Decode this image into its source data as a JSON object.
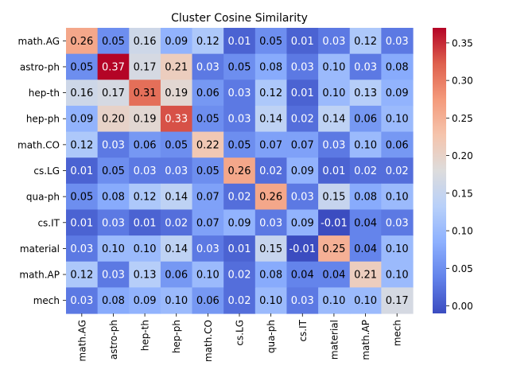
{
  "chart_data": {
    "type": "heatmap",
    "title": "Cluster Cosine Similarity",
    "xlabel": "",
    "ylabel": "",
    "rows": [
      "math.AG",
      "astro-ph",
      "hep-th",
      "hep-ph",
      "math.CO",
      "cs.LG",
      "qua-ph",
      "cs.IT",
      "material",
      "math.AP",
      "mech"
    ],
    "columns": [
      "math.AG",
      "astro-ph",
      "hep-th",
      "hep-ph",
      "math.CO",
      "cs.LG",
      "qua-ph",
      "cs.IT",
      "material",
      "math.AP",
      "mech"
    ],
    "values": [
      [
        0.26,
        0.05,
        0.16,
        0.09,
        0.12,
        0.01,
        0.05,
        0.01,
        0.03,
        0.12,
        0.03
      ],
      [
        0.05,
        0.37,
        0.17,
        0.21,
        0.03,
        0.05,
        0.08,
        0.03,
        0.1,
        0.03,
        0.08
      ],
      [
        0.16,
        0.17,
        0.31,
        0.19,
        0.06,
        0.03,
        0.12,
        0.01,
        0.1,
        0.13,
        0.09
      ],
      [
        0.09,
        0.2,
        0.19,
        0.33,
        0.05,
        0.03,
        0.14,
        0.02,
        0.14,
        0.06,
        0.1
      ],
      [
        0.12,
        0.03,
        0.06,
        0.05,
        0.22,
        0.05,
        0.07,
        0.07,
        0.03,
        0.1,
        0.06
      ],
      [
        0.01,
        0.05,
        0.03,
        0.03,
        0.05,
        0.26,
        0.02,
        0.09,
        0.01,
        0.02,
        0.02
      ],
      [
        0.05,
        0.08,
        0.12,
        0.14,
        0.07,
        0.02,
        0.26,
        0.03,
        0.15,
        0.08,
        0.1
      ],
      [
        0.01,
        0.03,
        0.01,
        0.02,
        0.07,
        0.09,
        0.03,
        0.09,
        -0.01,
        0.04,
        0.03
      ],
      [
        0.03,
        0.1,
        0.1,
        0.14,
        0.03,
        0.01,
        0.15,
        -0.01,
        0.25,
        0.04,
        0.1
      ],
      [
        0.12,
        0.03,
        0.13,
        0.06,
        0.1,
        0.02,
        0.08,
        0.04,
        0.04,
        0.21,
        0.1
      ],
      [
        0.03,
        0.08,
        0.09,
        0.1,
        0.06,
        0.02,
        0.1,
        0.03,
        0.1,
        0.1,
        0.17
      ]
    ],
    "value_labels": [
      [
        "0.26",
        "0.05",
        "0.16",
        "0.09",
        "0.12",
        "0.01",
        "0.05",
        "0.01",
        "0.03",
        "0.12",
        "0.03"
      ],
      [
        "0.05",
        "0.37",
        "0.17",
        "0.21",
        "0.03",
        "0.05",
        "0.08",
        "0.03",
        "0.10",
        "0.03",
        "0.08"
      ],
      [
        "0.16",
        "0.17",
        "0.31",
        "0.19",
        "0.06",
        "0.03",
        "0.12",
        "0.01",
        "0.10",
        "0.13",
        "0.09"
      ],
      [
        "0.09",
        "0.20",
        "0.19",
        "0.33",
        "0.05",
        "0.03",
        "0.14",
        "0.02",
        "0.14",
        "0.06",
        "0.10"
      ],
      [
        "0.12",
        "0.03",
        "0.06",
        "0.05",
        "0.22",
        "0.05",
        "0.07",
        "0.07",
        "0.03",
        "0.10",
        "0.06"
      ],
      [
        "0.01",
        "0.05",
        "0.03",
        "0.03",
        "0.05",
        "0.26",
        "0.02",
        "0.09",
        "0.01",
        "0.02",
        "0.02"
      ],
      [
        "0.05",
        "0.08",
        "0.12",
        "0.14",
        "0.07",
        "0.02",
        "0.26",
        "0.03",
        "0.15",
        "0.08",
        "0.10"
      ],
      [
        "0.01",
        "0.03",
        "0.01",
        "0.02",
        "0.07",
        "0.09",
        "0.03",
        "0.09",
        "-0.01",
        "0.04",
        "0.03"
      ],
      [
        "0.03",
        "0.10",
        "0.10",
        "0.14",
        "0.03",
        "0.01",
        "0.15",
        "-0.01",
        "0.25",
        "0.04",
        "0.10"
      ],
      [
        "0.12",
        "0.03",
        "0.13",
        "0.06",
        "0.10",
        "0.02",
        "0.08",
        "0.04",
        "0.04",
        "0.21",
        "0.10"
      ],
      [
        "0.03",
        "0.08",
        "0.09",
        "0.10",
        "0.06",
        "0.02",
        "0.10",
        "0.03",
        "0.10",
        "0.10",
        "0.17"
      ]
    ],
    "colorbar": {
      "range": [
        -0.01,
        0.37
      ],
      "ticks": [
        0.0,
        0.05,
        0.1,
        0.15,
        0.2,
        0.25,
        0.3,
        0.35
      ],
      "tick_labels": [
        "0.00",
        "0.05",
        "0.10",
        "0.15",
        "0.20",
        "0.25",
        "0.30",
        "0.35"
      ]
    },
    "colormap": "coolwarm",
    "colormap_stops": [
      "#3b4cc0",
      "#6282ea",
      "#8db0fe",
      "#b8d0f9",
      "#dddcdc",
      "#f5c4ac",
      "#f49a7b",
      "#de604d",
      "#b40426"
    ],
    "text_color_dark_bg": "#ffffff",
    "text_color_light_bg": "#000000",
    "grid": false,
    "legend": "colorbar-right"
  }
}
